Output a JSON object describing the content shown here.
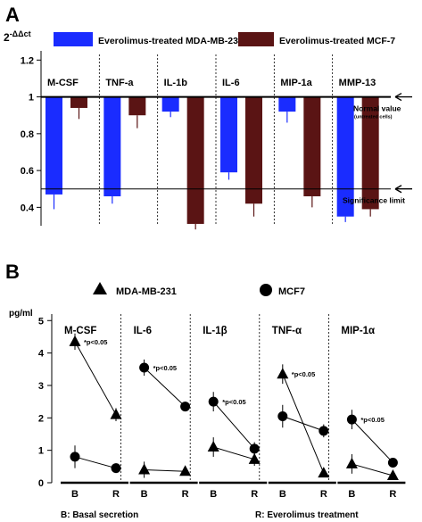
{
  "chart_data": [
    {
      "panel": "A",
      "type": "bar",
      "ylabel": "2-ΔΔct",
      "ylabel_base": "2",
      "ylabel_exp": "-ΔΔct",
      "ylim": [
        0.3,
        1.25
      ],
      "yticks": [
        0.4,
        0.6,
        0.8,
        1,
        1.2
      ],
      "ytick_labels": [
        "0.4",
        "0.6",
        "0.8",
        "1",
        "1.2"
      ],
      "categories": [
        "M-CSF",
        "TNF-a",
        "IL-1b",
        "IL-6",
        "MIP-1a",
        "MMP-13"
      ],
      "series": [
        {
          "name": "Everolimus-treated MDA-MB-231",
          "color": "#1a2cff",
          "values": [
            0.47,
            0.46,
            0.92,
            0.59,
            0.92,
            0.35
          ],
          "errors": [
            0.08,
            0.04,
            0.03,
            0.04,
            0.06,
            0.03
          ]
        },
        {
          "name": "Everolimus-treated MCF-7",
          "color": "#5a1414",
          "values": [
            0.94,
            0.9,
            0.31,
            0.42,
            0.46,
            0.39
          ],
          "errors": [
            0.06,
            0.07,
            0.03,
            0.07,
            0.06,
            0.04
          ]
        }
      ],
      "reference_lines": [
        {
          "value": 1.0,
          "label": "Normal value",
          "sublabel": "(untreated cells)"
        },
        {
          "value": 0.5,
          "label": "Significance limit"
        }
      ],
      "grid": false,
      "legend": "top"
    },
    {
      "panel": "B",
      "type": "line",
      "ylabel": "pg/ml",
      "ylim": [
        0,
        5.2
      ],
      "yticks": [
        0,
        1,
        2,
        3,
        4,
        5
      ],
      "ytick_labels": [
        "0",
        "1",
        "2",
        "3",
        "4",
        "5"
      ],
      "x_categories": [
        "B",
        "R"
      ],
      "groups": [
        "M-CSF",
        "IL-6",
        "IL-1β",
        "TNF-α",
        "MIP-1α"
      ],
      "series": [
        {
          "name": "MDA-MB-231",
          "marker": "triangle",
          "values": [
            [
              4.35,
              2.1
            ],
            [
              0.4,
              0.35
            ],
            [
              1.1,
              0.72
            ],
            [
              3.35,
              0.3
            ],
            [
              0.58,
              0.22
            ]
          ],
          "errors": [
            [
              0.25,
              0.2
            ],
            [
              0.25,
              0.12
            ],
            [
              0.3,
              0.2
            ],
            [
              0.3,
              0.08
            ],
            [
              0.3,
              0.06
            ]
          ]
        },
        {
          "name": "MCF7",
          "marker": "circle",
          "values": [
            [
              0.8,
              0.45
            ],
            [
              3.55,
              2.35
            ],
            [
              2.5,
              1.05
            ],
            [
              2.05,
              1.6
            ],
            [
              1.95,
              0.62
            ]
          ],
          "errors": [
            [
              0.35,
              0.15
            ],
            [
              0.25,
              0.15
            ],
            [
              0.3,
              0.2
            ],
            [
              0.35,
              0.2
            ],
            [
              0.3,
              0.15
            ]
          ]
        }
      ],
      "annotations": [
        {
          "group": "M-CSF",
          "text": "*p<0.05"
        },
        {
          "group": "IL-6",
          "text": "*p<0.05"
        },
        {
          "group": "IL-1β",
          "text": "*p<0.05"
        },
        {
          "group": "TNF-α",
          "text": "*p<0.05"
        },
        {
          "group": "MIP-1α",
          "text": "*p<0.05"
        }
      ],
      "footnote_left": "B: Basal secretion",
      "footnote_right": "R: Everolimus treatment",
      "grid": false,
      "legend": "top"
    }
  ]
}
